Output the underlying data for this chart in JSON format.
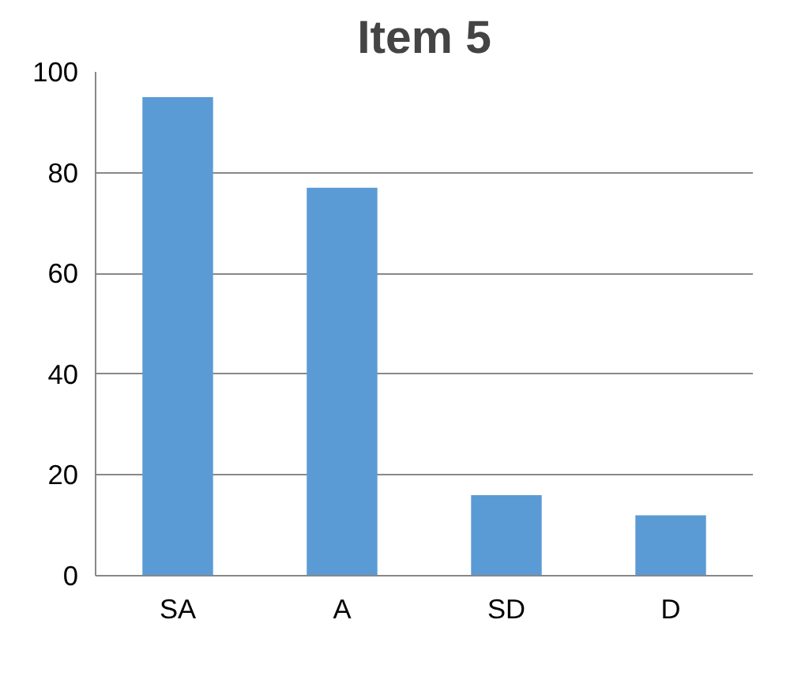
{
  "chart_data": {
    "type": "bar",
    "title": "Item 5",
    "categories": [
      "SA",
      "A",
      "SD",
      "D"
    ],
    "values": [
      95,
      77,
      16,
      12
    ],
    "color": "#5b9bd5",
    "ylim": [
      0,
      100
    ],
    "yticks": [
      0,
      20,
      40,
      60,
      80,
      100
    ],
    "grid": "y"
  }
}
